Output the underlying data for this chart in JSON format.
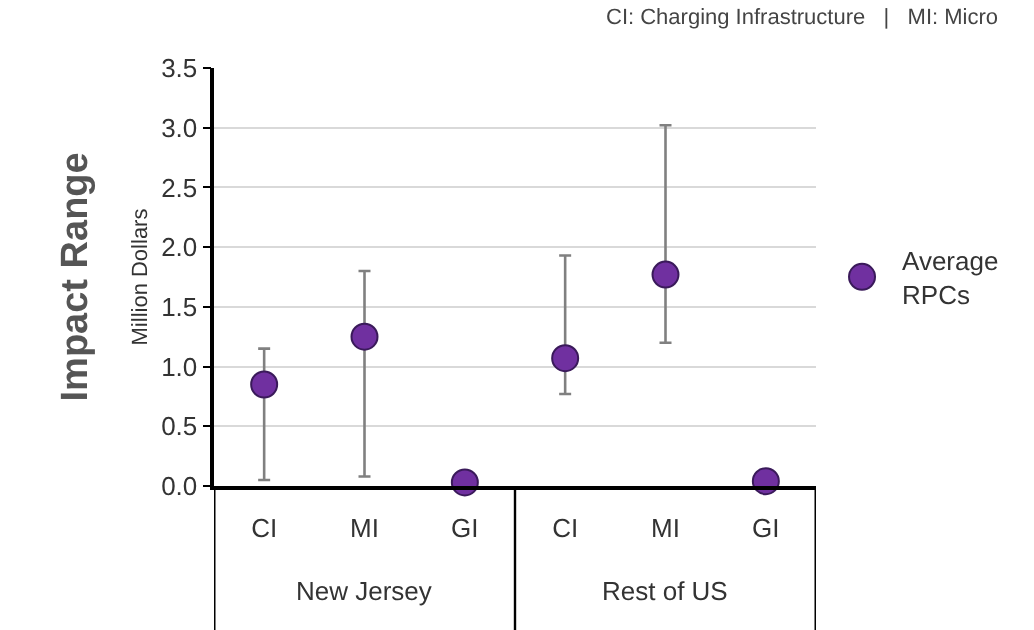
{
  "chart_data": {
    "type": "scatter",
    "title": "Impact Range",
    "ylabel": "Million Dollars",
    "categories": [
      "CI",
      "MI",
      "GI",
      "CI",
      "MI",
      "GI"
    ],
    "series": [
      {
        "name": "Average RPCs",
        "color": "#7030a0",
        "values": [
          0.85,
          1.25,
          0.03,
          1.07,
          1.77,
          0.04
        ],
        "errors": [
          [
            0.05,
            1.15
          ],
          [
            0.08,
            1.8
          ],
          null,
          [
            0.77,
            1.93
          ],
          [
            1.2,
            3.02
          ],
          null
        ]
      }
    ],
    "annotations": [
      "New Jersey",
      "Rest of US",
      "CI: Charging Infrastructure   |   MI: Micro"
    ],
    "ylim": [
      0,
      3.5
    ],
    "yticks": [
      {
        "value": 0,
        "label": "0.0"
      },
      {
        "value": 0.5,
        "label": "0.5"
      },
      {
        "value": 1,
        "label": "1.0"
      },
      {
        "value": 1.5,
        "label": "1.5"
      },
      {
        "value": 2,
        "label": "2.0"
      },
      {
        "value": 2.5,
        "label": "2.5"
      },
      {
        "value": 3,
        "label": "3.0"
      },
      {
        "value": 3.5,
        "label": "3.5"
      }
    ],
    "grid": "y",
    "legend": "right",
    "marker": "circle"
  }
}
